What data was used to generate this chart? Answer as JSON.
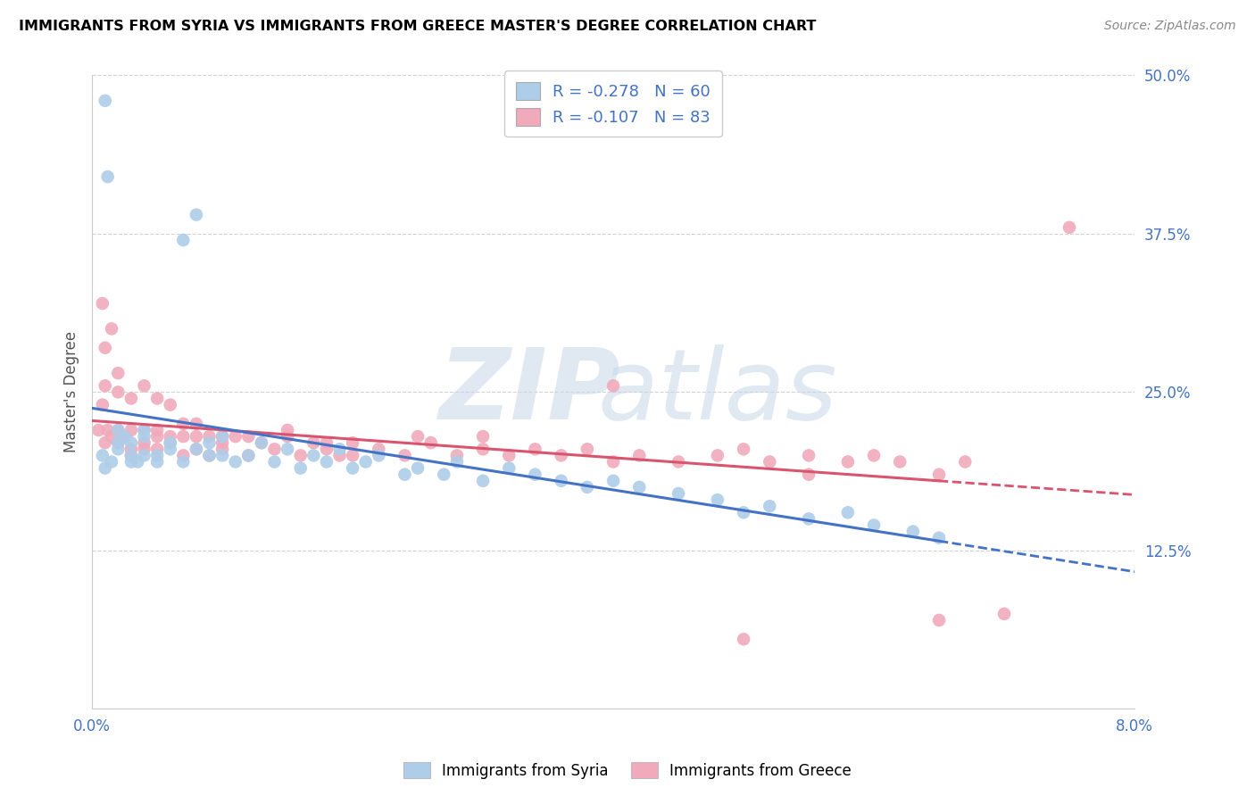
{
  "title": "IMMIGRANTS FROM SYRIA VS IMMIGRANTS FROM GREECE MASTER'S DEGREE CORRELATION CHART",
  "source": "Source: ZipAtlas.com",
  "ylabel": "Master's Degree",
  "R_syria": -0.278,
  "N_syria": 60,
  "R_greece": -0.107,
  "N_greece": 83,
  "color_syria": "#aecde8",
  "color_greece": "#f0aabb",
  "color_syria_line": "#4472c4",
  "color_greece_line": "#d9546e",
  "legend_label_syria": "Immigrants from Syria",
  "legend_label_greece": "Immigrants from Greece",
  "xlim": [
    0.0,
    0.08
  ],
  "ylim": [
    0.0,
    0.5
  ],
  "ytick_vals": [
    0.0,
    0.125,
    0.25,
    0.375,
    0.5
  ],
  "ytick_labels": [
    "",
    "12.5%",
    "25.0%",
    "37.5%",
    "50.0%"
  ],
  "xtick_vals": [
    0.0,
    0.01,
    0.02,
    0.03,
    0.04,
    0.05,
    0.06,
    0.07,
    0.08
  ],
  "xtick_labels": [
    "0.0%",
    "",
    "",
    "",
    "",
    "",
    "",
    "",
    "8.0%"
  ],
  "syria_x": [
    0.0008,
    0.001,
    0.001,
    0.0012,
    0.0015,
    0.002,
    0.002,
    0.002,
    0.0025,
    0.003,
    0.003,
    0.003,
    0.0035,
    0.004,
    0.004,
    0.004,
    0.005,
    0.005,
    0.006,
    0.006,
    0.007,
    0.007,
    0.008,
    0.008,
    0.009,
    0.009,
    0.01,
    0.01,
    0.011,
    0.012,
    0.013,
    0.014,
    0.015,
    0.016,
    0.017,
    0.018,
    0.019,
    0.02,
    0.021,
    0.022,
    0.024,
    0.025,
    0.027,
    0.028,
    0.03,
    0.032,
    0.034,
    0.036,
    0.038,
    0.04,
    0.042,
    0.045,
    0.048,
    0.05,
    0.052,
    0.055,
    0.058,
    0.06,
    0.063,
    0.065
  ],
  "syria_y": [
    0.2,
    0.19,
    0.48,
    0.42,
    0.195,
    0.21,
    0.22,
    0.205,
    0.215,
    0.195,
    0.2,
    0.21,
    0.195,
    0.2,
    0.215,
    0.22,
    0.195,
    0.2,
    0.205,
    0.21,
    0.195,
    0.37,
    0.39,
    0.205,
    0.2,
    0.21,
    0.215,
    0.2,
    0.195,
    0.2,
    0.21,
    0.195,
    0.205,
    0.19,
    0.2,
    0.195,
    0.205,
    0.19,
    0.195,
    0.2,
    0.185,
    0.19,
    0.185,
    0.195,
    0.18,
    0.19,
    0.185,
    0.18,
    0.175,
    0.18,
    0.175,
    0.17,
    0.165,
    0.155,
    0.16,
    0.15,
    0.155,
    0.145,
    0.14,
    0.135
  ],
  "greece_x": [
    0.0005,
    0.0008,
    0.001,
    0.001,
    0.0012,
    0.0015,
    0.002,
    0.002,
    0.002,
    0.0025,
    0.003,
    0.003,
    0.003,
    0.004,
    0.004,
    0.004,
    0.005,
    0.005,
    0.005,
    0.006,
    0.006,
    0.007,
    0.007,
    0.008,
    0.008,
    0.009,
    0.009,
    0.01,
    0.01,
    0.011,
    0.012,
    0.013,
    0.014,
    0.015,
    0.016,
    0.017,
    0.018,
    0.019,
    0.02,
    0.022,
    0.024,
    0.026,
    0.028,
    0.03,
    0.032,
    0.034,
    0.036,
    0.038,
    0.04,
    0.042,
    0.045,
    0.048,
    0.05,
    0.052,
    0.055,
    0.058,
    0.06,
    0.062,
    0.065,
    0.067,
    0.0008,
    0.001,
    0.0015,
    0.002,
    0.003,
    0.004,
    0.005,
    0.006,
    0.007,
    0.008,
    0.01,
    0.012,
    0.015,
    0.018,
    0.02,
    0.025,
    0.03,
    0.04,
    0.05,
    0.055,
    0.065,
    0.07,
    0.075
  ],
  "greece_y": [
    0.22,
    0.24,
    0.21,
    0.255,
    0.22,
    0.215,
    0.25,
    0.22,
    0.21,
    0.215,
    0.205,
    0.22,
    0.2,
    0.21,
    0.22,
    0.205,
    0.215,
    0.22,
    0.205,
    0.21,
    0.215,
    0.2,
    0.215,
    0.205,
    0.215,
    0.2,
    0.215,
    0.21,
    0.205,
    0.215,
    0.2,
    0.21,
    0.205,
    0.215,
    0.2,
    0.21,
    0.205,
    0.2,
    0.21,
    0.205,
    0.2,
    0.21,
    0.2,
    0.205,
    0.2,
    0.205,
    0.2,
    0.205,
    0.255,
    0.2,
    0.195,
    0.2,
    0.205,
    0.195,
    0.2,
    0.195,
    0.2,
    0.195,
    0.185,
    0.195,
    0.32,
    0.285,
    0.3,
    0.265,
    0.245,
    0.255,
    0.245,
    0.24,
    0.225,
    0.225,
    0.215,
    0.215,
    0.22,
    0.21,
    0.2,
    0.215,
    0.215,
    0.195,
    0.055,
    0.185,
    0.07,
    0.075,
    0.38
  ]
}
